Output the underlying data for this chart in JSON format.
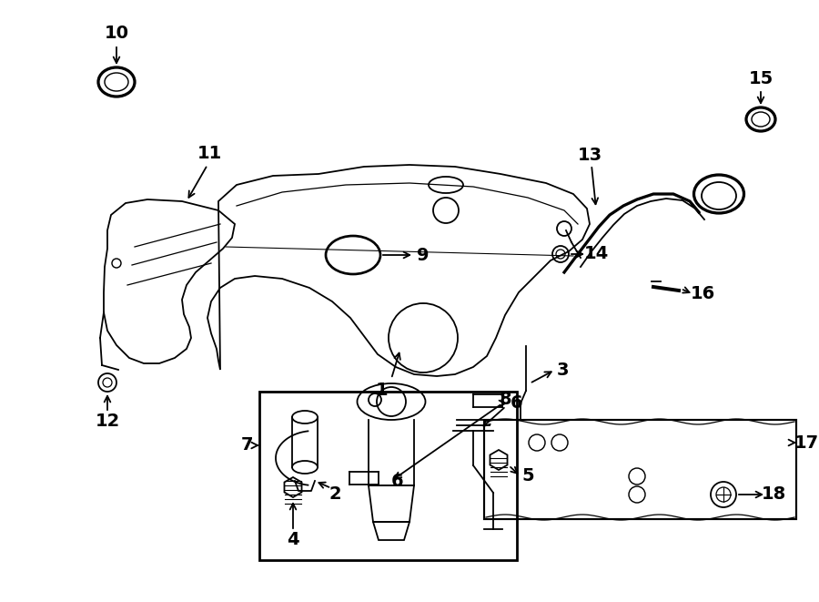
{
  "title": "",
  "bg_color": "#ffffff",
  "line_color": "#000000",
  "text_color": "#000000",
  "fig_width": 9.0,
  "fig_height": 6.61,
  "dpi": 100
}
